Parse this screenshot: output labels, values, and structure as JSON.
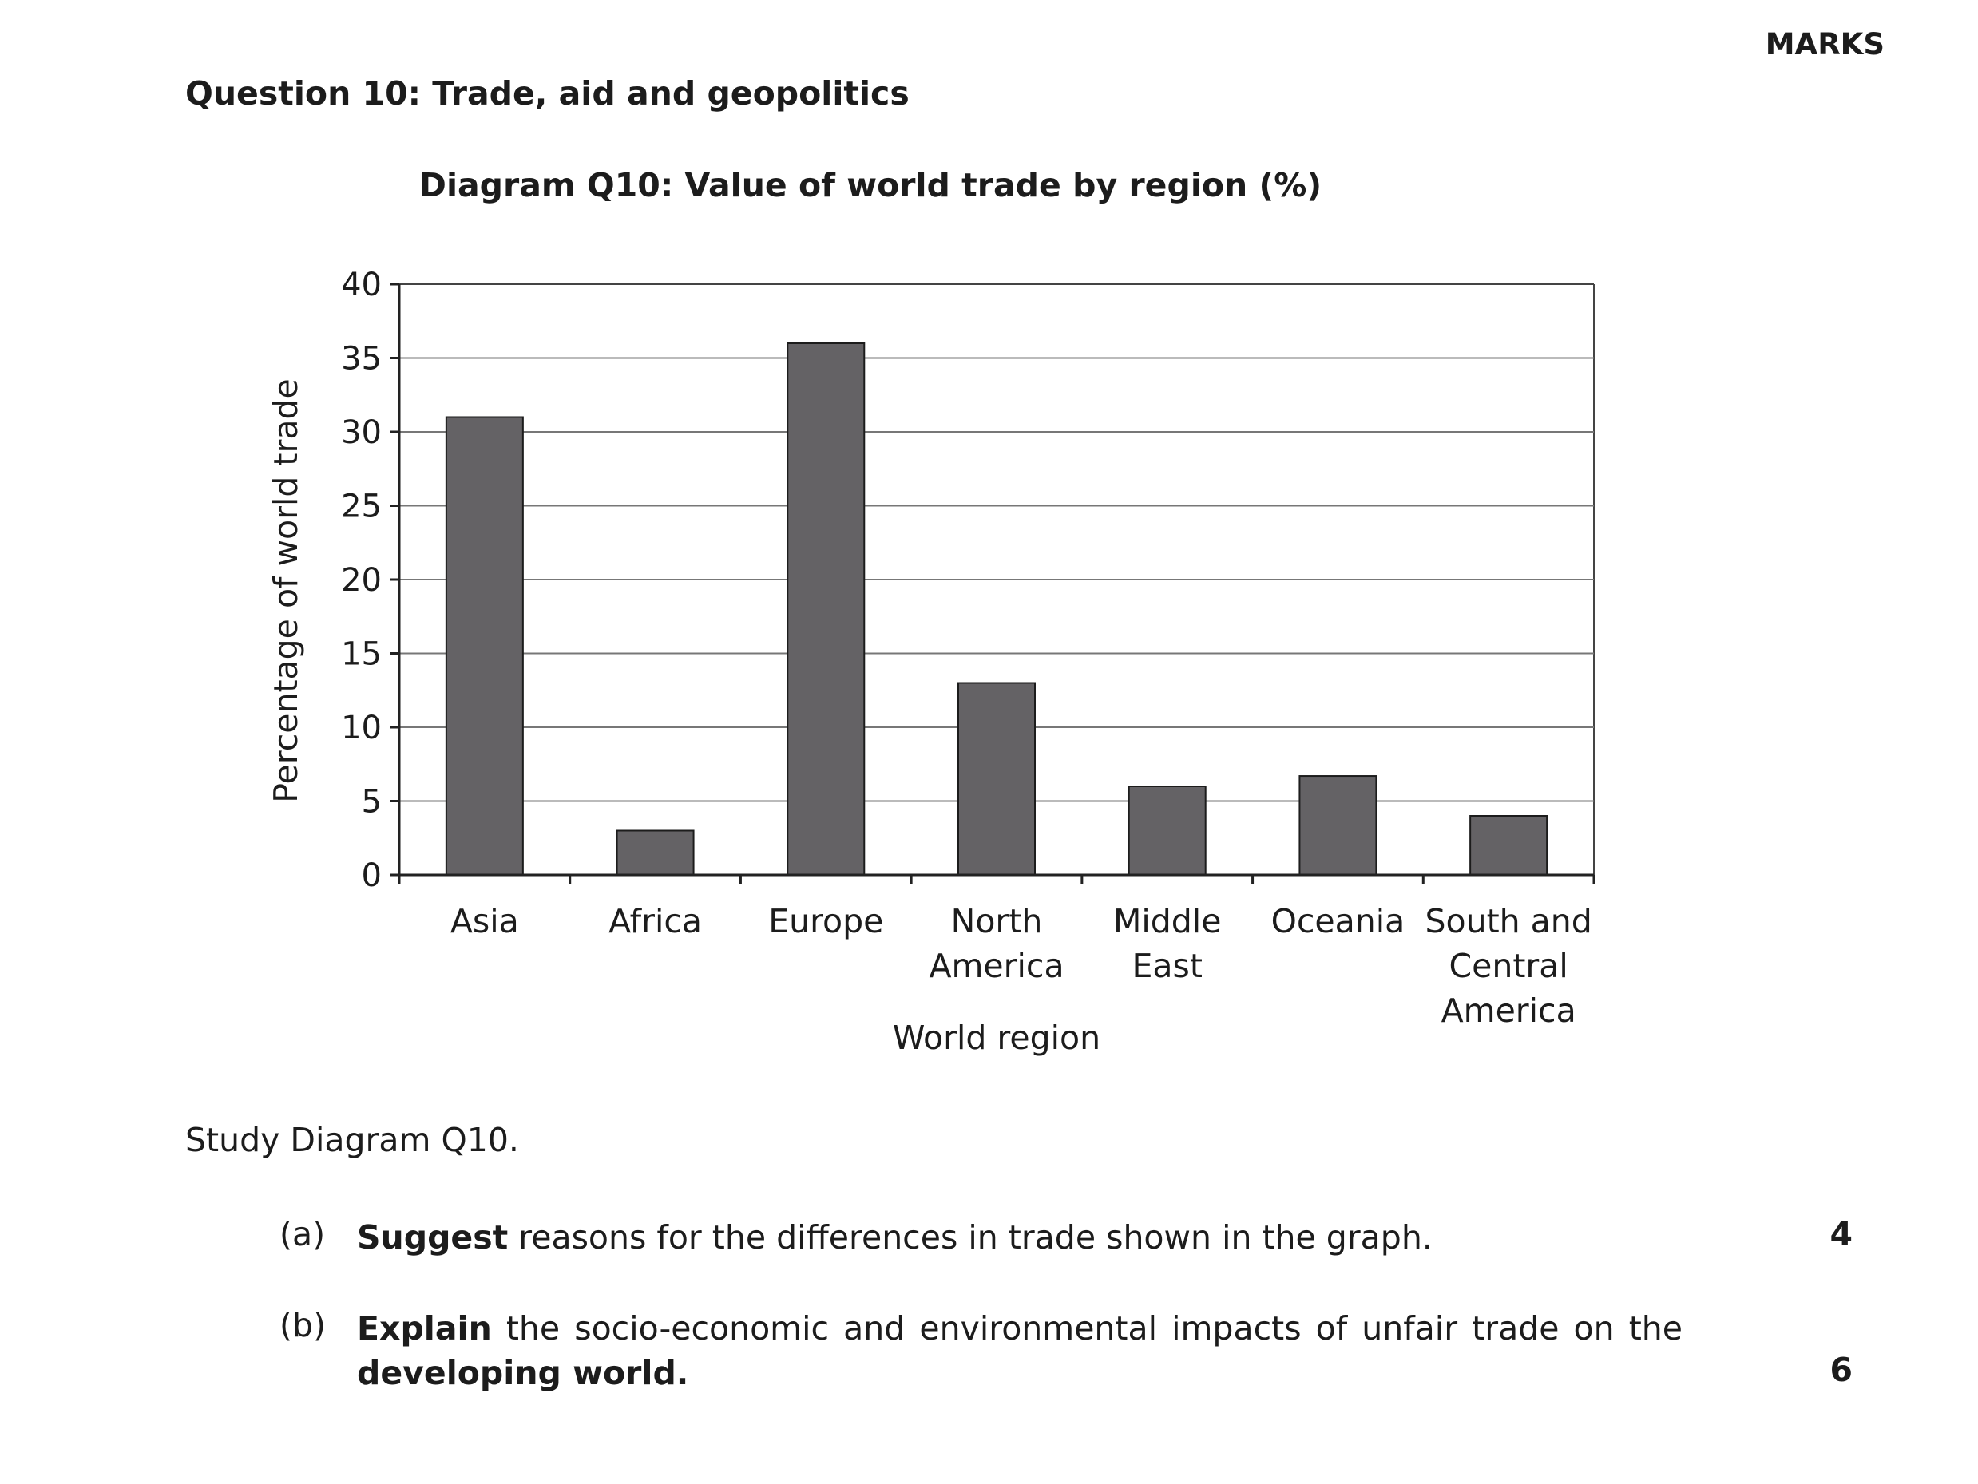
{
  "header": {
    "marks_label": "MARKS"
  },
  "question": {
    "title": "Question 10: Trade, aid and geopolitics"
  },
  "diagram": {
    "title": "Diagram Q10: Value of world trade by region (%)"
  },
  "chart_data": {
    "type": "bar",
    "title": "Diagram Q10: Value of world trade by region (%)",
    "xlabel": "World region",
    "ylabel": "Percentage of world trade",
    "categories": [
      "Asia",
      "Africa",
      "Europe",
      "North America",
      "Middle East",
      "Oceania",
      "South and Central America"
    ],
    "category_label_lines": [
      [
        "Asia"
      ],
      [
        "Africa"
      ],
      [
        "Europe"
      ],
      [
        "North",
        "America"
      ],
      [
        "Middle",
        "East"
      ],
      [
        "Oceania"
      ],
      [
        "South and",
        "Central",
        "America"
      ]
    ],
    "values": [
      31,
      3,
      36,
      13,
      6,
      6.7,
      4
    ],
    "ylim": [
      0,
      40
    ],
    "yticks": [
      0,
      5,
      10,
      15,
      20,
      25,
      30,
      35,
      40
    ],
    "grid": true,
    "bar_color": "#646265"
  },
  "instruction": "Study Diagram Q10.",
  "parts": [
    {
      "label": "(a)",
      "bold": "Suggest",
      "text": " reasons for the differences in trade shown in the graph.",
      "marks": "4"
    },
    {
      "label": "(b)",
      "bold": "Explain",
      "text": " the socio-economic and environmental impacts of unfair trade on the",
      "bold2": "developing world.",
      "marks": "6"
    }
  ]
}
